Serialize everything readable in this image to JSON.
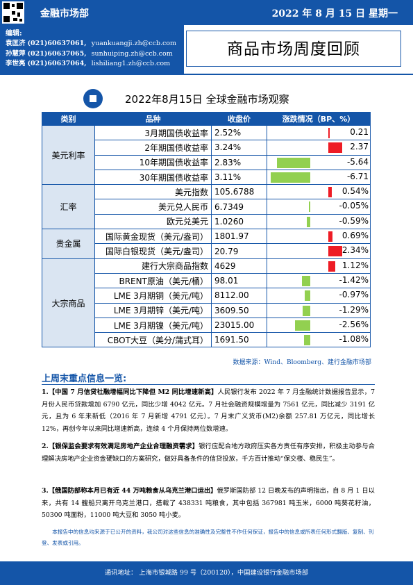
{
  "header": {
    "department": "金融市场部",
    "date": "2022 年 8 月 15 日  星期一",
    "editors_label": "编辑:",
    "editors": [
      {
        "name": "袁匡济",
        "phone": "(021)60637061,",
        "email": "yuankuangji.zh@ccb.com"
      },
      {
        "name": "孙慧萍",
        "phone": "(021)60637065,",
        "email": "sunhuiping.zh@ccb.com"
      },
      {
        "name": "李世亮",
        "phone": "(021)60637064,",
        "email": "lishiliang1.zh@ccb.com"
      }
    ],
    "title": "商品市场周度回顾",
    "brand_color": "#1455a8"
  },
  "table": {
    "title": "2022年8月15日 全球金融市场观察",
    "headers": [
      "类别",
      "品种",
      "收盘价",
      "涨跌情况（BP、%）"
    ],
    "categories": [
      "美元利率",
      "汇率",
      "贵金属",
      "大宗商品"
    ],
    "rows": [
      {
        "name": "3月期国债收益率",
        "close": "2.52%",
        "change": "0.21",
        "value": 0.21
      },
      {
        "name": "2年期国债收益率",
        "close": "3.24%",
        "change": "2.37",
        "value": 2.37
      },
      {
        "name": "10年期国债收益率",
        "close": "2.83%",
        "change": "-5.64",
        "value": -5.64
      },
      {
        "name": "30年期国债收益率",
        "close": "3.11%",
        "change": "-6.71",
        "value": -6.71
      },
      {
        "name": "美元指数",
        "close": "105.6788",
        "change": "0.54%",
        "value": 0.54
      },
      {
        "name": "美元兑人民币",
        "close": "6.7349",
        "change": "-0.05%",
        "value": -0.05
      },
      {
        "name": "欧元兑美元",
        "close": "1.0260",
        "change": "-0.59%",
        "value": -0.59
      },
      {
        "name": "国际黄金现货（美元/盎司）",
        "close": "1801.97",
        "change": "0.69%",
        "value": 0.69
      },
      {
        "name": "国际白银现货（美元/盎司）",
        "close": "20.79",
        "change": "2.34%",
        "value": 2.34
      },
      {
        "name": "建行大宗商品指数",
        "close": "4629",
        "change": "1.12%",
        "value": 1.12
      },
      {
        "name": "BRENT原油（美元/桶）",
        "close": "98.01",
        "change": "-1.42%",
        "value": -1.42
      },
      {
        "name": "LME 3月期铜（美元/吨）",
        "close": "8112.00",
        "change": "-0.97%",
        "value": -0.97
      },
      {
        "name": "LME 3月期锌（美元/吨）",
        "close": "3609.50",
        "change": "-1.29%",
        "value": -1.29
      },
      {
        "name": "LME 3月期镍（美元/吨）",
        "close": "23015.00",
        "change": "-2.56%",
        "value": -2.56
      },
      {
        "name": "CBOT大豆（美分/蒲式耳）",
        "close": "1691.50",
        "change": "-1.08%",
        "value": -1.08
      }
    ],
    "source": "数据来源：Wind、Bloomberg、建行金融市场部",
    "up_color": "#ee1c25",
    "down_color": "#92d050"
  },
  "highlights": {
    "title": "上周末重点信息一览:",
    "items": [
      {
        "head": "1.【中国 7 月信贷社融增幅同比下降但 M2 同比增速新高】",
        "body": "人民银行发布 2022 年 7 月金融统计数据报告显示，7 月份人民币贷款增加 6790 亿元，同比少增 4042 亿元。7 月社会融资规模增量为 7561 亿元，同比减少 3191 亿元，且为 6 年来新低（2016 年 7 月新增 4791 亿元）。7 月末广义货币(M2)余额 257.81 万亿元，同比增长 12%，再创今年以来同比增速新高，连续 4 个月保持两位数增速。"
      },
      {
        "head": "2.【银保监会要求有效满足房地产企业合理融资需求】",
        "body": "银行应配合地方政府压实各方责任有序安排，积极主动参与合理解决房地产企业资金硬缺口的方案研究，做好具备条件的信贷投放，千方百计推动“保交楼、稳民生”。"
      },
      {
        "head": "3.【俄国防部称本月已有近 44 万吨粮食从乌克兰港口运出】",
        "body": "俄罗斯国防部 12 日晚发布的声明指出，自 8 月 1 日以来，共有 14 艘船只离开乌克兰港口，搭载了 438331 吨粮食，其中包括 367981 吨玉米，6000 吨葵花籽油，50300 吨面粉，11000 吨大豆和 3050 吨小麦。"
      }
    ]
  },
  "disclaimer": "本报告中的信息均来源于已公开的资料，我公司对这些信息的准确性及完整性不作任何保证，报告中的信息或所表任何形式翻版、复制、刊登、发表或引用。",
  "footer": "通讯地址：  上海市银城路 99 号（200120），中国建设银行金融市场部"
}
